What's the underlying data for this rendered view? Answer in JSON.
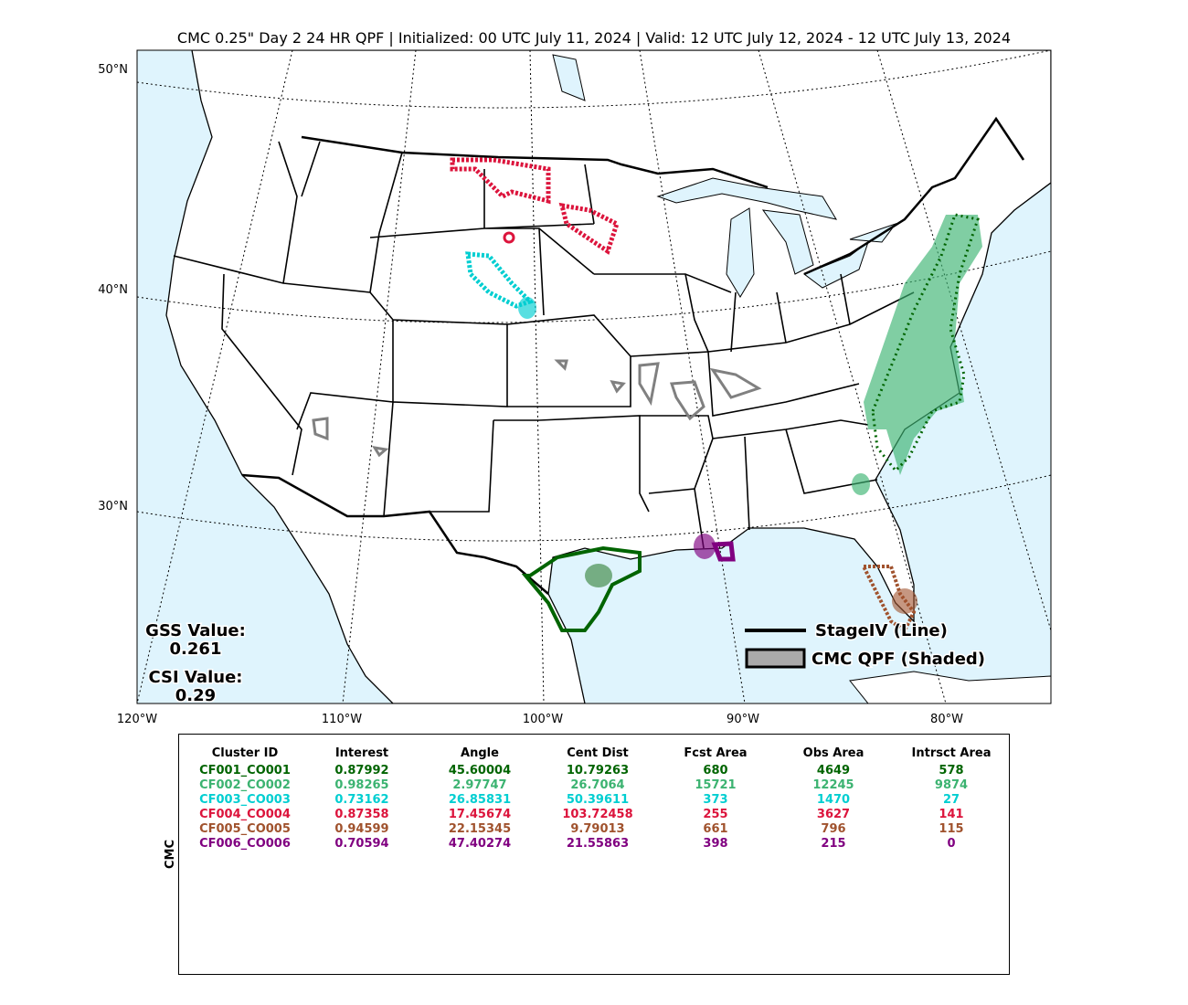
{
  "title": "CMC 0.25\" Day 2 24 HR QPF | Initialized: 00 UTC July 11, 2024 | Valid: 12 UTC July 12, 2024 - 12 UTC July 13, 2024",
  "map": {
    "lat_labels": [
      "50°N",
      "40°N",
      "30°N"
    ],
    "lon_labels": [
      "120°W",
      "110°W",
      "100°W",
      "90°W",
      "80°W"
    ],
    "gss_label": "GSS Value:",
    "gss_value": "0.261",
    "csi_label": "CSI Value:",
    "csi_value": "0.29",
    "legend": [
      "StageIV (Line)",
      "CMC QPF (Shaded)"
    ]
  },
  "table": {
    "side_label": "CMC",
    "headers": [
      "Cluster ID",
      "Interest",
      "Angle",
      "Cent Dist",
      "Fcst Area",
      "Obs Area",
      "Intrsct Area"
    ],
    "row_colors": [
      "#006400",
      "#3cb371",
      "#00ced1",
      "#dc143c",
      "#a0522d",
      "#800080"
    ],
    "rows": [
      [
        "CF001_CO001",
        "0.87992",
        "45.60004",
        "10.79263",
        "680",
        "4649",
        "578"
      ],
      [
        "CF002_CO002",
        "0.98265",
        "2.97747",
        "26.7064",
        "15721",
        "12245",
        "9874"
      ],
      [
        "CF003_CO003",
        "0.73162",
        "26.85831",
        "50.39611",
        "373",
        "1470",
        "27"
      ],
      [
        "CF004_CO004",
        "0.87358",
        "17.45674",
        "103.72458",
        "255",
        "3627",
        "141"
      ],
      [
        "CF005_CO005",
        "0.94599",
        "22.15345",
        "9.79013",
        "661",
        "796",
        "115"
      ],
      [
        "CF006_CO006",
        "0.70594",
        "47.40274",
        "21.55863",
        "398",
        "215",
        "0"
      ]
    ]
  }
}
